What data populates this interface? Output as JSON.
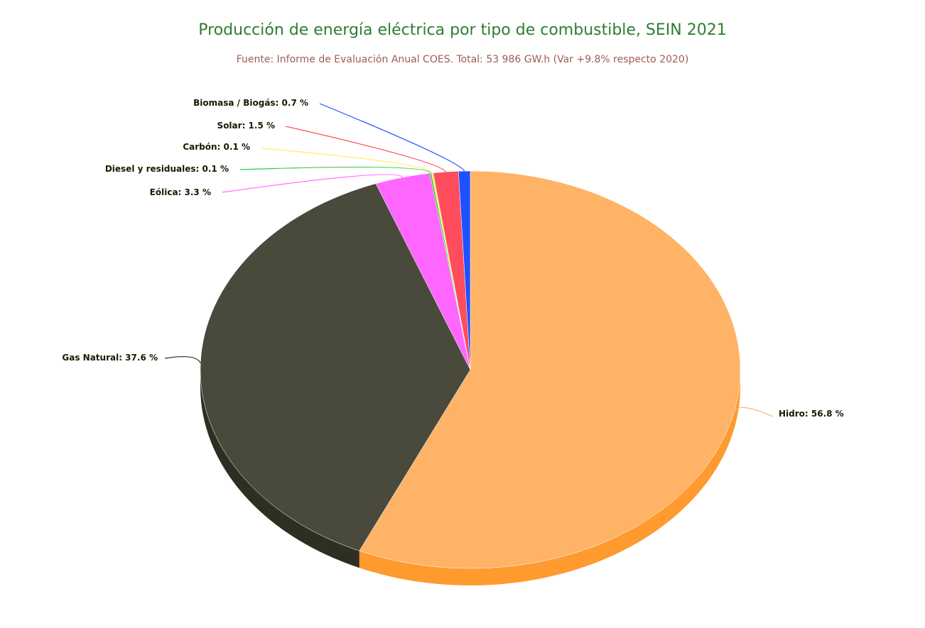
{
  "chart_data": {
    "type": "pie",
    "title": "Producción de energía eléctrica por tipo de combustible, SEIN 2021",
    "subtitle": "Fuente: Informe de Evaluación Anual COES. Total: 53 986 GW.h (Var +9.8% respecto 2020)",
    "slices": [
      {
        "name": "Hidro",
        "value": 56.8,
        "label": "Hidro: 56.8 %",
        "color": "#ffb366",
        "side_color": "#ff9a2e"
      },
      {
        "name": "Gas Natural",
        "value": 37.6,
        "label": "Gas Natural: 37.6 %",
        "color": "#4a4a3c",
        "side_color": "#2e2e22"
      },
      {
        "name": "Eólica",
        "value": 3.3,
        "label": "Eólica: 3.3 %",
        "color": "#ff66ff",
        "side_color": "#d94fd9"
      },
      {
        "name": "Diesel y residuales",
        "value": 0.1,
        "label": "Diesel y residuales: 0.1 %",
        "color": "#33cc33",
        "side_color": "#229922"
      },
      {
        "name": "Carbón",
        "value": 0.1,
        "label": "Carbón: 0.1 %",
        "color": "#ffee55",
        "side_color": "#d9c840"
      },
      {
        "name": "Solar",
        "value": 1.5,
        "label": "Solar: 1.5 %",
        "color": "#ff4d5e",
        "side_color": "#d93a49"
      },
      {
        "name": "Biomasa / Biogás",
        "value": 0.7,
        "label": "Biomasa / Biogás: 0.7 %",
        "color": "#2050ff",
        "side_color": "#1638c0"
      }
    ],
    "legend": "none",
    "labels": "outside-with-connectors"
  }
}
